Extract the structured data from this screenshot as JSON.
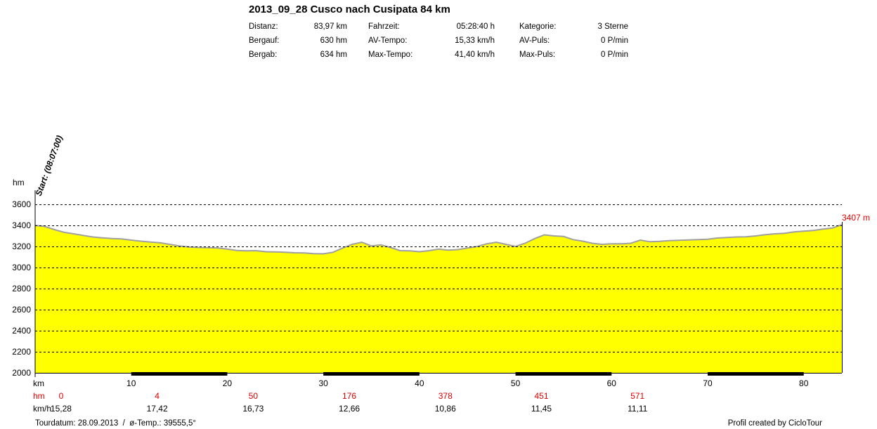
{
  "title": "2013_09_28 Cusco nach Cusipata 84 km",
  "stats": [
    {
      "label": "Distanz:",
      "value": "83,97 km"
    },
    {
      "label": "Bergauf:",
      "value": "630 hm"
    },
    {
      "label": "Bergab:",
      "value": "634 hm"
    },
    {
      "label": "Fahrzeit:",
      "value": "05:28:40 h"
    },
    {
      "label": "AV-Tempo:",
      "value": "15,33 km/h"
    },
    {
      "label": "Max-Tempo:",
      "value": "41,40 km/h"
    },
    {
      "label": "Kategorie:",
      "value": "3 Sterne"
    },
    {
      "label": "AV-Puls:",
      "value": "0 P/min"
    },
    {
      "label": "Max-Puls:",
      "value": "0 P/min"
    }
  ],
  "start_label": "Start: (08:07:00)",
  "end_label": "3407 m",
  "footer_left": "Tourdatum: 28.09.2013  /  ø-Temp.: 39555,5°",
  "footer_right": "Profil created by CicloTour",
  "colors": {
    "fill": "#ffff00",
    "line": "#a0a0a0",
    "red": "#dd0000",
    "grid": "#000000"
  },
  "chart_data": {
    "type": "area",
    "ylabel": "hm",
    "xlabel": "km",
    "xlim": [
      0,
      83.97
    ],
    "ylim": [
      2000,
      3600
    ],
    "yticks": [
      2000,
      2200,
      2400,
      2600,
      2800,
      3000,
      3200,
      3400,
      3600
    ],
    "xticks": [
      10,
      20,
      30,
      40,
      50,
      60,
      70,
      80
    ],
    "grid": true,
    "x": [
      0,
      1,
      2,
      3,
      4,
      5,
      6,
      7,
      8,
      9,
      10,
      11,
      12,
      13,
      14,
      15,
      16,
      17,
      18,
      19,
      20,
      21,
      22,
      23,
      24,
      25,
      26,
      27,
      28,
      29,
      30,
      31,
      32,
      33,
      34,
      35,
      36,
      37,
      38,
      39,
      40,
      41,
      42,
      43,
      44,
      45,
      46,
      47,
      48,
      49,
      50,
      51,
      52,
      53,
      54,
      55,
      56,
      57,
      58,
      59,
      60,
      61,
      62,
      63,
      64,
      65,
      66,
      67,
      68,
      69,
      70,
      71,
      72,
      73,
      74,
      75,
      76,
      77,
      78,
      79,
      80,
      81,
      82,
      83,
      83.97
    ],
    "y": [
      3400,
      3390,
      3360,
      3335,
      3320,
      3305,
      3290,
      3282,
      3275,
      3272,
      3260,
      3250,
      3242,
      3235,
      3220,
      3205,
      3195,
      3190,
      3188,
      3185,
      3175,
      3162,
      3158,
      3160,
      3150,
      3148,
      3145,
      3140,
      3138,
      3132,
      3130,
      3145,
      3185,
      3220,
      3240,
      3205,
      3215,
      3190,
      3160,
      3158,
      3150,
      3160,
      3175,
      3165,
      3170,
      3185,
      3200,
      3225,
      3240,
      3220,
      3200,
      3230,
      3275,
      3310,
      3300,
      3295,
      3265,
      3250,
      3230,
      3220,
      3225,
      3225,
      3230,
      3260,
      3245,
      3248,
      3255,
      3258,
      3262,
      3265,
      3268,
      3280,
      3285,
      3290,
      3292,
      3300,
      3312,
      3320,
      3325,
      3338,
      3345,
      3352,
      3365,
      3375,
      3407
    ],
    "row_labels": {
      "km": "km",
      "hm": "hm",
      "kmh": "km/h"
    },
    "segments": {
      "hm": [
        "0",
        "4",
        "50",
        "176",
        "378",
        "451",
        "571"
      ],
      "speed": [
        "15,28",
        "17,42",
        "16,73",
        "12,66",
        "10,86",
        "11,45",
        "11,11"
      ]
    }
  }
}
